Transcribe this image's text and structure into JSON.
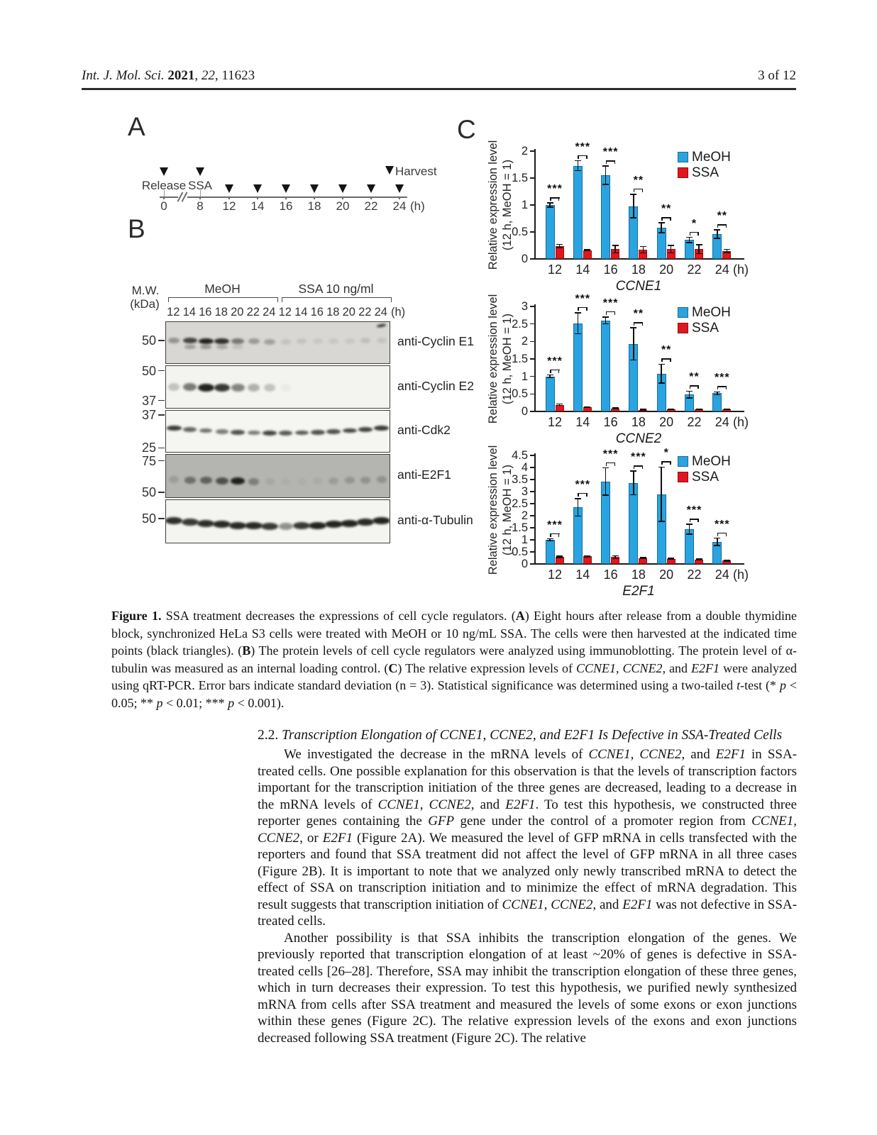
{
  "page": {
    "header_left_segments": [
      {
        "t": "Int. J. Mol. Sci. ",
        "s": "i"
      },
      {
        "t": "2021",
        "s": "b"
      },
      {
        "t": ", "
      },
      {
        "t": "22",
        "s": "i"
      },
      {
        "t": ", 11623"
      }
    ],
    "header_right": "3 of 12"
  },
  "colors": {
    "meoh": "#29a4e0",
    "ssa": "#e2161d",
    "axis": "#1c1c1c",
    "band": "#181818"
  },
  "figure": {
    "panelA": {
      "label": "A",
      "release_label": "Release",
      "ssa_label": "SSA",
      "harvest_label": "Harvest",
      "ticks": [
        "0",
        "8",
        "12",
        "14",
        "16",
        "18",
        "20",
        "22",
        "24"
      ],
      "unit": "(h)"
    },
    "panelB": {
      "label": "B",
      "mw_line1": "M.W.",
      "mw_line2": "(kDa)",
      "group_labels": [
        "MeOH",
        "SSA 10 ng/ml"
      ],
      "lane_times": [
        "12",
        "14",
        "16",
        "18",
        "20",
        "22",
        "24",
        "12",
        "14",
        "16",
        "18",
        "20",
        "22",
        "24"
      ],
      "time_unit": "(h)",
      "blots": [
        {
          "antibody": "anti-Cyclin E1",
          "bg": "#d8d7d3",
          "band_pos": 0.44,
          "arc": 2,
          "markers": [
            {
              "kda": "50",
              "pos": 0.47
            }
          ],
          "bands": [
            0.35,
            0.78,
            0.95,
            0.88,
            0.5,
            0.32,
            0.28,
            0.1,
            0.1,
            0.08,
            0.08,
            0.08,
            0.12,
            0.1
          ],
          "bands2": [
            0,
            0.3,
            0.35,
            0.25,
            0.12,
            0,
            0,
            0,
            0,
            0,
            0,
            0,
            0,
            0
          ],
          "speck": true
        },
        {
          "antibody": "anti-Cyclin E2",
          "bg": "#f3f3ef",
          "band_pos": 0.5,
          "arc": 1,
          "markers": [
            {
              "kda": "50",
              "pos": 0.13
            },
            {
              "kda": "37",
              "pos": 0.84
            }
          ],
          "bands": [
            0.22,
            0.55,
            0.95,
            0.85,
            0.5,
            0.3,
            0.22,
            0.04,
            0.02,
            0.02,
            0.02,
            0.02,
            0.02,
            0.02
          ]
        },
        {
          "antibody": "anti-Cdk2",
          "bg": "#f5f5f1",
          "band_pos": 0.42,
          "arc": 7,
          "markers": [
            {
              "kda": "37",
              "pos": 0.12
            },
            {
              "kda": "25",
              "pos": 0.92
            }
          ],
          "bands": [
            0.85,
            0.65,
            0.6,
            0.55,
            0.75,
            0.55,
            0.8,
            0.7,
            0.7,
            0.75,
            0.75,
            0.8,
            0.8,
            0.85
          ]
        },
        {
          "antibody": "anti-E2F1",
          "bg": "#b4b4b0",
          "band_pos": 0.58,
          "arc": 3,
          "markers": [
            {
              "kda": "75",
              "pos": 0.16
            },
            {
              "kda": "50",
              "pos": 0.9
            }
          ],
          "bands": [
            0.15,
            0.45,
            0.55,
            0.65,
            0.95,
            0.35,
            0.08,
            0.04,
            0.04,
            0.06,
            0.15,
            0.2,
            0.22,
            0.22
          ]
        },
        {
          "antibody": "anti-α-Tubulin",
          "bg": "#f4f4f0",
          "band_pos": 0.48,
          "arc": 8,
          "markers": [
            {
              "kda": "50",
              "pos": 0.45
            }
          ],
          "bands": [
            0.9,
            0.85,
            0.9,
            0.92,
            0.92,
            0.92,
            0.85,
            0.45,
            0.85,
            0.95,
            0.95,
            0.95,
            0.92,
            0.95
          ]
        }
      ]
    },
    "panelC": {
      "label": "C"
    }
  },
  "chart_data": [
    {
      "type": "bar",
      "title": "CCNE1",
      "categories": [
        "12",
        "14",
        "16",
        "18",
        "20",
        "22",
        "24"
      ],
      "x_unit": "(h)",
      "ylabel": "Relative expression level (12 h, MeOH = 1)",
      "ylabel_lines": [
        "Relative expression level",
        "(12 h, MeOH = 1)"
      ],
      "ylim": [
        0,
        2
      ],
      "yticks": [
        "0",
        "0.5",
        "1",
        "1.5",
        "2"
      ],
      "grid": false,
      "legend_position": "top-right",
      "legend": [
        "MeOH",
        "SSA"
      ],
      "series": [
        {
          "name": "MeOH",
          "values": [
            1.0,
            1.73,
            1.55,
            0.98,
            0.58,
            0.35,
            0.46
          ],
          "errors": [
            0.04,
            0.09,
            0.17,
            0.22,
            0.09,
            0.05,
            0.08
          ]
        },
        {
          "name": "SSA",
          "values": [
            0.24,
            0.16,
            0.18,
            0.17,
            0.18,
            0.18,
            0.15
          ],
          "errors": [
            0.03,
            0.01,
            0.07,
            0.06,
            0.07,
            0.08,
            0.03
          ]
        }
      ],
      "significance": [
        "***",
        "***",
        "***",
        "**",
        "**",
        "*",
        "**"
      ]
    },
    {
      "type": "bar",
      "title": "CCNE2",
      "categories": [
        "12",
        "14",
        "16",
        "18",
        "20",
        "22",
        "24"
      ],
      "x_unit": "(h)",
      "ylabel": "Relative expression level (12 h, MeOH = 1)",
      "ylabel_lines": [
        "Relative expression level",
        "(12 h, MeOH = 1)"
      ],
      "ylim": [
        0,
        3
      ],
      "yticks": [
        "0",
        "0.5",
        "1",
        "1.5",
        "2",
        "2.5",
        "3"
      ],
      "grid": false,
      "legend_position": "top-right",
      "legend": [
        "MeOH",
        "SSA"
      ],
      "series": [
        {
          "name": "MeOH",
          "values": [
            1.0,
            2.52,
            2.6,
            1.93,
            1.08,
            0.48,
            0.52
          ],
          "errors": [
            0.04,
            0.3,
            0.1,
            0.46,
            0.27,
            0.1,
            0.04
          ]
        },
        {
          "name": "SSA",
          "values": [
            0.19,
            0.12,
            0.09,
            0.05,
            0.06,
            0.06,
            0.06
          ],
          "errors": [
            0.02,
            0.01,
            0.01,
            0.01,
            0.01,
            0.01,
            0.01
          ]
        }
      ],
      "significance": [
        "***",
        "***",
        "***",
        "**",
        "**",
        "**",
        "***"
      ]
    },
    {
      "type": "bar",
      "title": "E2F1",
      "categories": [
        "12",
        "14",
        "16",
        "18",
        "20",
        "22",
        "24"
      ],
      "x_unit": "(h)",
      "ylabel": "Relative expression level (12 h, MeOH = 1)",
      "ylabel_lines": [
        "Relative expression level",
        "(12 h, MeOH = 1)"
      ],
      "ylim": [
        0,
        4.5
      ],
      "yticks": [
        "0",
        "0.5",
        "1",
        "1.5",
        "2",
        "2.5",
        "3",
        "3.5",
        "4",
        "4.5"
      ],
      "grid": false,
      "legend_position": "top-right",
      "legend": [
        "MeOH",
        "SSA"
      ],
      "series": [
        {
          "name": "MeOH",
          "values": [
            1.0,
            2.35,
            3.42,
            3.36,
            2.89,
            1.44,
            0.92
          ],
          "errors": [
            0.04,
            0.36,
            0.56,
            0.49,
            1.13,
            0.2,
            0.15
          ]
        },
        {
          "name": "SSA",
          "values": [
            0.3,
            0.31,
            0.28,
            0.25,
            0.22,
            0.19,
            0.14
          ],
          "errors": [
            0.03,
            0.03,
            0.06,
            0.02,
            0.02,
            0.02,
            0.02
          ]
        }
      ],
      "significance": [
        "***",
        "***",
        "***",
        "***",
        "*",
        "***",
        "***"
      ]
    }
  ],
  "caption_segments": [
    {
      "t": "Figure 1.",
      "s": "b"
    },
    {
      "t": " SSA treatment decreases the expressions of cell cycle regulators. ("
    },
    {
      "t": "A",
      "s": "b"
    },
    {
      "t": ") Eight hours after release from a double thymidine block, synchronized HeLa S3 cells were treated with MeOH or 10 ng/mL SSA. The cells were then harvested at the indicated time points (black triangles). ("
    },
    {
      "t": "B",
      "s": "b"
    },
    {
      "t": ") The protein levels of cell cycle regulators were analyzed using immunoblotting. The protein level of α-tubulin was measured as an internal loading control. ("
    },
    {
      "t": "C",
      "s": "b"
    },
    {
      "t": ") The relative expression levels of "
    },
    {
      "t": "CCNE1",
      "s": "i"
    },
    {
      "t": ", "
    },
    {
      "t": "CCNE2",
      "s": "i"
    },
    {
      "t": ", and "
    },
    {
      "t": "E2F1",
      "s": "i"
    },
    {
      "t": " were analyzed using qRT-PCR. Error bars indicate standard deviation (n = 3). Statistical significance was determined using a two-tailed "
    },
    {
      "t": "t",
      "s": "i"
    },
    {
      "t": "-test (* "
    },
    {
      "t": "p",
      "s": "i"
    },
    {
      "t": " < 0.05; ** "
    },
    {
      "t": "p",
      "s": "i"
    },
    {
      "t": " < 0.01; *** "
    },
    {
      "t": "p",
      "s": "i"
    },
    {
      "t": " < 0.001)."
    }
  ],
  "section": {
    "heading_segments": [
      {
        "t": "2.2. "
      },
      {
        "t": "Transcription Elongation of CCNE1, CCNE2, and E2F1 Is Defective in SSA-Treated Cells",
        "s": "i"
      }
    ]
  },
  "paragraphs": [
    {
      "segments": [
        {
          "t": "We investigated the decrease in the mRNA levels of "
        },
        {
          "t": "CCNE1",
          "s": "i"
        },
        {
          "t": ", "
        },
        {
          "t": "CCNE2",
          "s": "i"
        },
        {
          "t": ", and "
        },
        {
          "t": "E2F1",
          "s": "i"
        },
        {
          "t": " in SSA-treated cells. One possible explanation for this observation is that the levels of transcription factors important for the transcription initiation of the three genes are decreased, leading to a decrease in the mRNA levels of "
        },
        {
          "t": "CCNE1",
          "s": "i"
        },
        {
          "t": ", "
        },
        {
          "t": "CCNE2",
          "s": "i"
        },
        {
          "t": ", and "
        },
        {
          "t": "E2F1",
          "s": "i"
        },
        {
          "t": ". To test this hypothesis, we constructed three reporter genes containing the "
        },
        {
          "t": "GFP",
          "s": "i"
        },
        {
          "t": " gene under the control of a promoter region from "
        },
        {
          "t": "CCNE1",
          "s": "i"
        },
        {
          "t": ", "
        },
        {
          "t": "CCNE2",
          "s": "i"
        },
        {
          "t": ", or "
        },
        {
          "t": "E2F1",
          "s": "i"
        },
        {
          "t": " (Figure 2A). We measured the level of GFP mRNA in cells transfected with the reporters and found that SSA treatment did not affect the level of GFP mRNA in all three cases (Figure 2B). It is important to note that we analyzed only newly transcribed mRNA to detect the effect of SSA on transcription initiation and to minimize the effect of mRNA degradation. This result suggests that transcription initiation of "
        },
        {
          "t": "CCNE1",
          "s": "i"
        },
        {
          "t": ", "
        },
        {
          "t": "CCNE2",
          "s": "i"
        },
        {
          "t": ", and "
        },
        {
          "t": "E2F1",
          "s": "i"
        },
        {
          "t": " was not defective in SSA-treated cells."
        }
      ]
    },
    {
      "segments": [
        {
          "t": "Another possibility is that SSA inhibits the transcription elongation of the genes. We previously reported that transcription elongation of at least ~20% of genes is defective in SSA-treated cells [26–28]. Therefore, SSA may inhibit the transcription elongation of these three genes, which in turn decreases their expression. To test this hypothesis, we purified newly synthesized mRNA from cells after SSA treatment and measured the levels of some exons or exon junctions within these genes (Figure 2C). The relative expression levels of the exons and exon junctions decreased following SSA treatment (Figure 2C). The relative"
        }
      ]
    }
  ]
}
